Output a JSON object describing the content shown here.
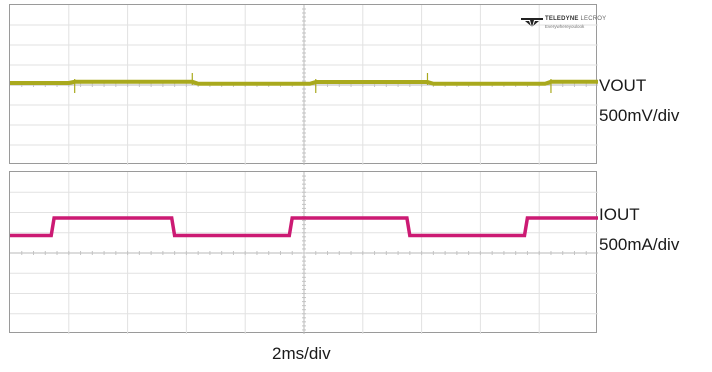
{
  "chart_data": {
    "type": "line",
    "xlabel": "2ms/div",
    "x_range": [
      0,
      20
    ],
    "x_unit": "ms",
    "grid": true,
    "grid_divisions": {
      "x": 10,
      "y": 8
    },
    "panels": [
      {
        "name": "VOUT",
        "scale": "500mV/div",
        "color": "#a9a91d",
        "series": [
          {
            "name": "VOUT",
            "x": [
              0,
              2,
              2.2,
              6.2,
              6.4,
              10.2,
              10.4,
              14.2,
              14.4,
              18.2,
              18.4,
              20
            ],
            "y": [
              0,
              0,
              0.06,
              0.06,
              -0.04,
              -0.04,
              0.05,
              0.05,
              -0.04,
              -0.04,
              0.06,
              0.06
            ]
          }
        ]
      },
      {
        "name": "IOUT",
        "scale": "500mA/div",
        "color": "#cc1a73",
        "series": [
          {
            "name": "IOUT",
            "x": [
              0,
              1.4,
              1.5,
              5.5,
              5.6,
              9.5,
              9.6,
              13.5,
              13.6,
              17.5,
              17.6,
              20
            ],
            "y": [
              -0.1,
              -0.1,
              1.1,
              1.1,
              -0.1,
              -0.1,
              1.1,
              1.1,
              -0.1,
              -0.1,
              1.1,
              1.1
            ]
          }
        ]
      }
    ]
  },
  "logo": {
    "brand": "TELEDYNE",
    "brand_suffix": "LECROY",
    "tagline": "Everywhereyoulook"
  }
}
